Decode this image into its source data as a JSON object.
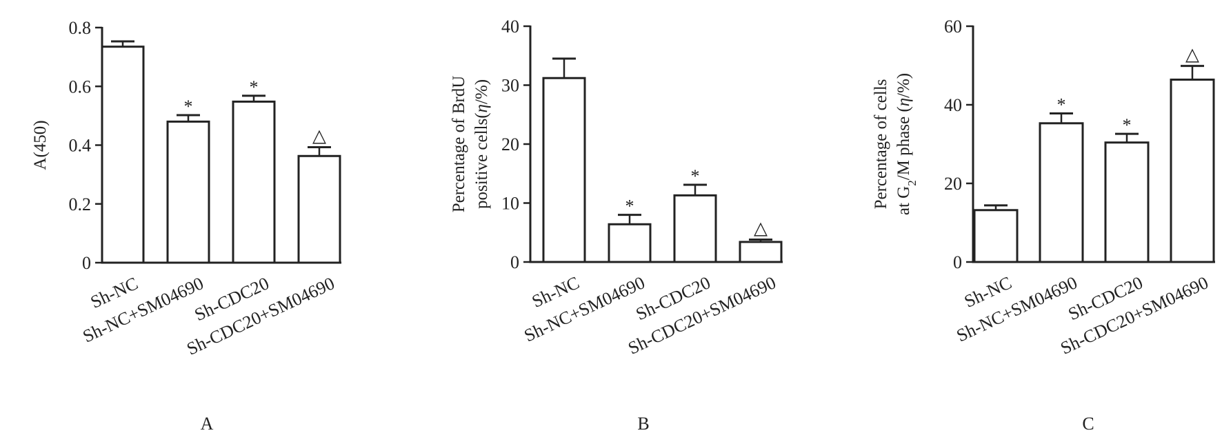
{
  "chart_data": [
    {
      "type": "bar",
      "panel_label": "A",
      "ylabel": [
        "A(450)"
      ],
      "ylim": [
        0,
        0.8
      ],
      "yticks": [
        0,
        0.2,
        0.4,
        0.6,
        0.8
      ],
      "ytick_labels": [
        "0",
        "0.2",
        "0.4",
        "0.6",
        "0.8"
      ],
      "categories": [
        "Sh-NC",
        "Sh-NC+SM04690",
        "Sh-CDC20",
        "Sh-CDC20+SM04690"
      ],
      "values": [
        0.735,
        0.48,
        0.548,
        0.363
      ],
      "errors": [
        0.018,
        0.022,
        0.02,
        0.03
      ],
      "marks": [
        "",
        "*",
        "*",
        "△"
      ]
    },
    {
      "type": "bar",
      "panel_label": "B",
      "ylabel": [
        "Percentage of BrdU",
        "positive cells(η/%)"
      ],
      "ylim": [
        0,
        40
      ],
      "yticks": [
        0,
        10,
        20,
        30,
        40
      ],
      "ytick_labels": [
        "0",
        "10",
        "20",
        "30",
        "40"
      ],
      "categories": [
        "Sh-NC",
        "Sh-NC+SM04690",
        "Sh-CDC20",
        "Sh-CDC20+SM04690"
      ],
      "values": [
        31.2,
        6.4,
        11.3,
        3.4
      ],
      "errors": [
        3.3,
        1.6,
        1.8,
        0.4
      ],
      "marks": [
        "",
        "*",
        "*",
        "△"
      ]
    },
    {
      "type": "bar",
      "panel_label": "C",
      "ylabel": [
        "Percentage of cells",
        "at G2/M phase (η/%)"
      ],
      "ylim": [
        0,
        60
      ],
      "yticks": [
        0,
        20,
        40,
        60
      ],
      "ytick_labels": [
        "0",
        "20",
        "40",
        "60"
      ],
      "categories": [
        "Sh-NC",
        "Sh-NC+SM04690",
        "Sh-CDC20",
        "Sh-CDC20+SM04690"
      ],
      "values": [
        13.2,
        35.3,
        30.4,
        46.4
      ],
      "errors": [
        1.2,
        2.5,
        2.2,
        3.5
      ],
      "marks": [
        "",
        "*",
        "*",
        "△"
      ]
    }
  ]
}
